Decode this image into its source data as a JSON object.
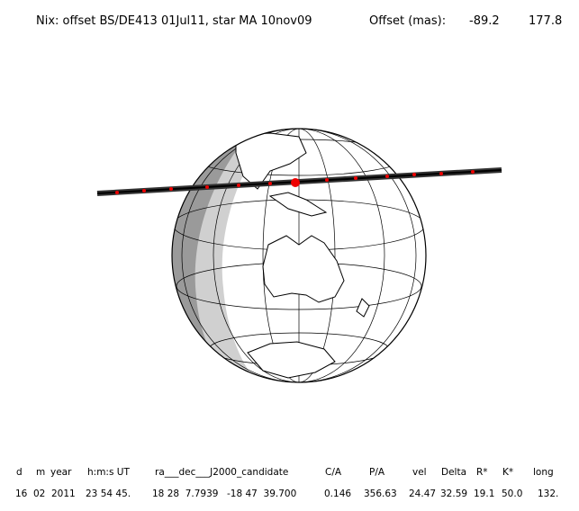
{
  "header": {
    "title": "Nix: offset BS/DE413 01Jul11, star MA 10nov09",
    "offset_label": "Offset (mas):",
    "offset_values": [
      "-89.2",
      "177.8"
    ]
  },
  "table": {
    "columns": [
      "d",
      "m",
      "year",
      "h:m:s UT",
      "ra___dec___J2000_candidate",
      "C/A",
      "P/A",
      "vel",
      "Delta",
      "R*",
      "K*",
      "long"
    ],
    "row": [
      "16",
      "02",
      "2011",
      "23 54 45.",
      "18 28  7.7939",
      "-18 47  39.700",
      "0.146",
      "356.63",
      "24.47",
      "32.59",
      "19.1",
      "50.0",
      "132."
    ]
  }
}
